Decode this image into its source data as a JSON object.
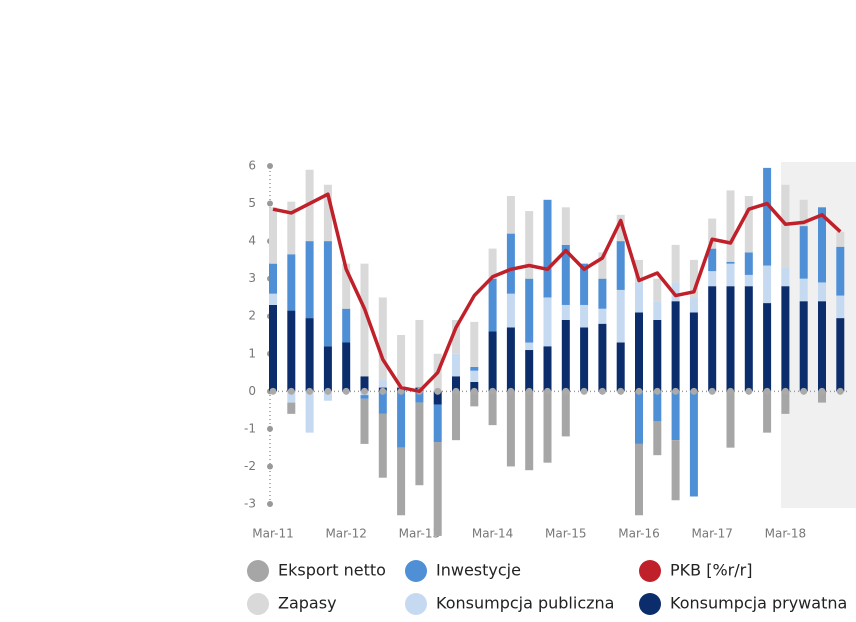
{
  "chart_data": {
    "type": "bar",
    "categories": [
      "Mar-11",
      null,
      null,
      null,
      "Mar-12",
      null,
      null,
      null,
      "Mar-13",
      null,
      null,
      null,
      "Mar-14",
      null,
      null,
      null,
      "Mar-15",
      null,
      null,
      null,
      "Mar-16",
      null,
      null,
      null,
      "Mar-17",
      null,
      null,
      null,
      "Mar-18",
      null,
      null,
      null
    ],
    "series": [
      {
        "name": "Eksport netto",
        "color": "#a6a6a6",
        "values": [
          0,
          -0.3,
          0,
          0,
          0,
          -1.2,
          -1.7,
          -1.8,
          -2.2,
          -2.5,
          -1.3,
          -0.4,
          -0.9,
          -2.0,
          -2.1,
          -1.9,
          -1.2,
          0,
          0,
          0,
          -1.9,
          -0.9,
          -1.6,
          0,
          0,
          -1.5,
          0,
          -1.1,
          -0.6,
          0,
          -0.3,
          0
        ]
      },
      {
        "name": "Inwestycje",
        "color": "#4f8fd6",
        "values": [
          0.8,
          1.5,
          2.05,
          2.8,
          0.9,
          -0.1,
          -0.6,
          -1.5,
          -0.3,
          -1.0,
          0.0,
          0.1,
          1.4,
          1.6,
          1.7,
          2.6,
          1.6,
          1.1,
          0.8,
          1.3,
          -1.4,
          -0.8,
          -1.3,
          -2.8,
          0.6,
          0.05,
          0.6,
          2.6,
          0.0,
          1.4,
          2.0,
          1.3
        ]
      },
      {
        "name": "PKB [%r/r]",
        "color": "#c0202a",
        "type": "line",
        "values": [
          4.85,
          4.75,
          5.0,
          5.25,
          3.25,
          2.2,
          0.85,
          0.1,
          0.0,
          0.5,
          1.7,
          2.55,
          3.05,
          3.25,
          3.35,
          3.25,
          3.75,
          3.25,
          3.55,
          4.55,
          2.95,
          3.15,
          2.55,
          2.65,
          4.05,
          3.95,
          4.85,
          5.0,
          4.45,
          4.5,
          4.7,
          4.25
        ]
      },
      {
        "name": "Zapasy",
        "color": "#d9d9d9",
        "values": [
          1.5,
          1.4,
          1.9,
          1.5,
          1.2,
          3.0,
          2.2,
          1.4,
          1.8,
          1.0,
          0.9,
          1.2,
          0.8,
          1.0,
          1.8,
          0,
          1.0,
          0,
          0.7,
          0.7,
          0.6,
          0.6,
          1.0,
          1.0,
          0.8,
          1.9,
          1.5,
          0,
          2.2,
          0.7,
          0,
          0.4
        ]
      },
      {
        "name": "Konsumpcja publiczna",
        "color": "#c5d9f1",
        "values": [
          0.3,
          -0.3,
          -1.1,
          -0.25,
          0,
          -0.1,
          0.2,
          0,
          0,
          0,
          0.6,
          0.3,
          0,
          0.9,
          0.2,
          1.3,
          0.4,
          0.6,
          0.4,
          1.4,
          0.8,
          0.5,
          0.5,
          0.4,
          0.4,
          0.6,
          0.3,
          1.0,
          0.5,
          0.6,
          0.5,
          0.6
        ]
      },
      {
        "name": "Konsumpcja prywatna",
        "color": "#0b2d6b",
        "values": [
          2.3,
          2.15,
          1.95,
          1.2,
          1.3,
          0.4,
          0.1,
          0.1,
          0.1,
          -0.35,
          0.4,
          0.25,
          1.6,
          1.7,
          1.1,
          1.2,
          1.9,
          1.7,
          1.8,
          1.3,
          2.1,
          1.9,
          2.4,
          2.1,
          2.8,
          2.8,
          2.8,
          2.35,
          2.8,
          2.4,
          2.4,
          1.95
        ]
      }
    ],
    "ylim": [
      -3,
      6
    ],
    "yticks": [
      -3,
      -2,
      -1,
      0,
      1,
      2,
      3,
      4,
      5,
      6
    ]
  }
}
